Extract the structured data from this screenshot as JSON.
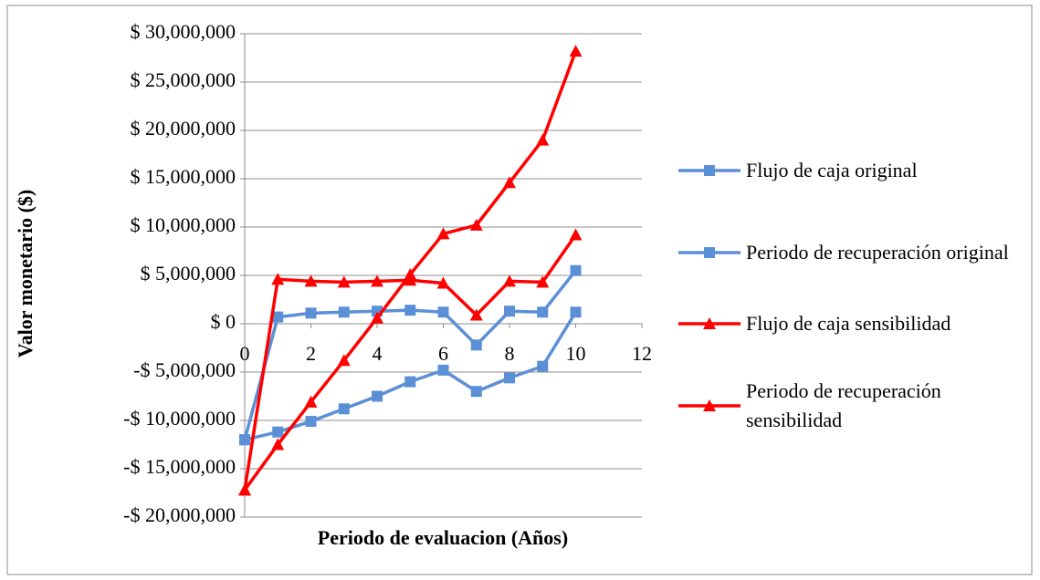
{
  "chart_data": {
    "type": "line",
    "x_label": "Periodo de evaluacion (Años)",
    "y_label": "Valor monetario ($)",
    "x": [
      0,
      1,
      2,
      3,
      4,
      5,
      6,
      7,
      8,
      9,
      10
    ],
    "series": [
      {
        "name": "Flujo de caja original",
        "color": "#5b8fd6",
        "marker": "square",
        "values": [
          -12000000,
          700000,
          1100000,
          1200000,
          1300000,
          1400000,
          1200000,
          -2200000,
          1300000,
          1200000,
          5500000
        ]
      },
      {
        "name": "Periodo de recuperación original",
        "color": "#5b8fd6",
        "marker": "square",
        "values": [
          -12000000,
          -11200000,
          -10100000,
          -8800000,
          -7500000,
          -6000000,
          -4800000,
          -7000000,
          -5600000,
          -4400000,
          1200000
        ]
      },
      {
        "name": "Flujo de caja sensibilidad",
        "color": "#ff0000",
        "marker": "triangle",
        "values": [
          -17200000,
          4600000,
          4400000,
          4300000,
          4400000,
          4500000,
          4200000,
          900000,
          4400000,
          4300000,
          9200000
        ]
      },
      {
        "name": "Periodo de recuperación sensibilidad",
        "color": "#ff0000",
        "marker": "triangle",
        "values": [
          -17200000,
          -12500000,
          -8100000,
          -3800000,
          600000,
          5100000,
          9300000,
          10200000,
          14600000,
          19000000,
          28200000
        ]
      }
    ],
    "xlim": [
      0,
      12
    ],
    "xticks": [
      0,
      2,
      4,
      6,
      8,
      10,
      12
    ],
    "ylim": [
      -20000000,
      30000000
    ],
    "yticks": [
      {
        "value": -20000000,
        "label": "-$ 20,000,000"
      },
      {
        "value": -15000000,
        "label": "-$ 15,000,000"
      },
      {
        "value": -10000000,
        "label": "-$ 10,000,000"
      },
      {
        "value": -5000000,
        "label": "-$ 5,000,000"
      },
      {
        "value": 0,
        "label": "$ 0"
      },
      {
        "value": 5000000,
        "label": "$ 5,000,000"
      },
      {
        "value": 10000000,
        "label": "$ 10,000,000"
      },
      {
        "value": 15000000,
        "label": "$ 15,000,000"
      },
      {
        "value": 20000000,
        "label": "$ 20,000,000"
      },
      {
        "value": 25000000,
        "label": "$ 25,000,000"
      },
      {
        "value": 30000000,
        "label": "$ 30,000,000"
      }
    ],
    "grid": true,
    "legend": "right"
  }
}
